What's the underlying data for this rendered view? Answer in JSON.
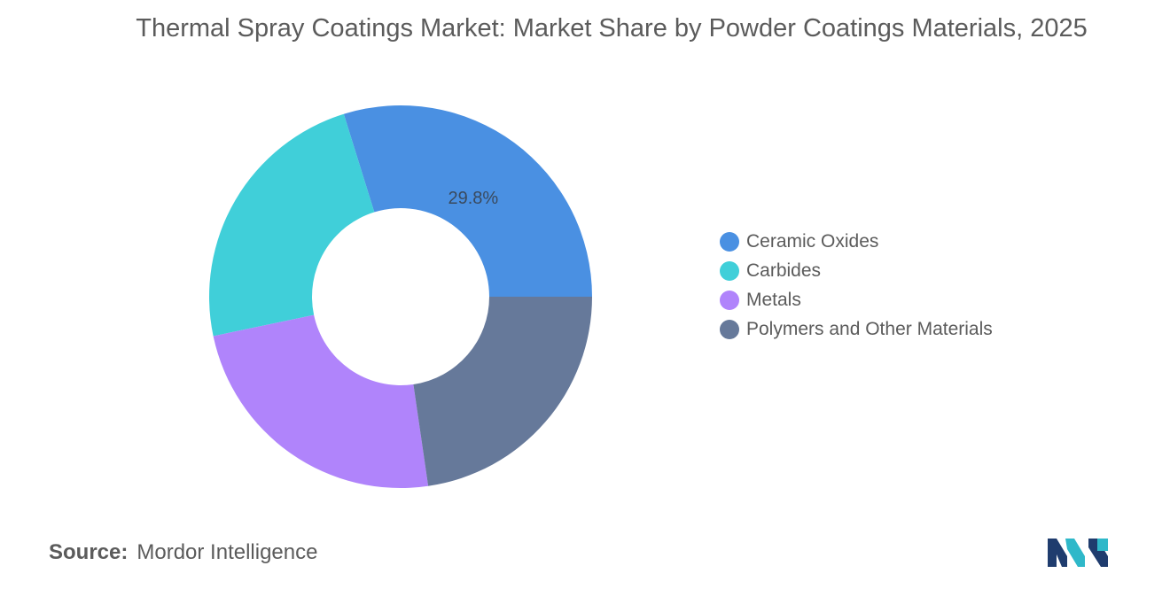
{
  "title": "Thermal Spray Coatings Market: Market Share by Powder Coatings Materials, 2025",
  "chart_data": {
    "type": "pie",
    "variant": "donut",
    "categories": [
      "Ceramic Oxides",
      "Carbides",
      "Metals",
      "Polymers and Other Materials"
    ],
    "values": [
      29.8,
      23.5,
      24.0,
      22.7
    ],
    "data_labels": [
      "29.8%",
      "",
      "",
      ""
    ],
    "colors": [
      "#4a90e2",
      "#40cfd9",
      "#b084fb",
      "#66799a"
    ],
    "legend_position": "right"
  },
  "source": {
    "label": "Source:",
    "text": "Mordor Intelligence"
  },
  "logo": {
    "name": "mordor-intelligence-logo",
    "colors": [
      "#1f3c6e",
      "#2fb8c9"
    ]
  }
}
